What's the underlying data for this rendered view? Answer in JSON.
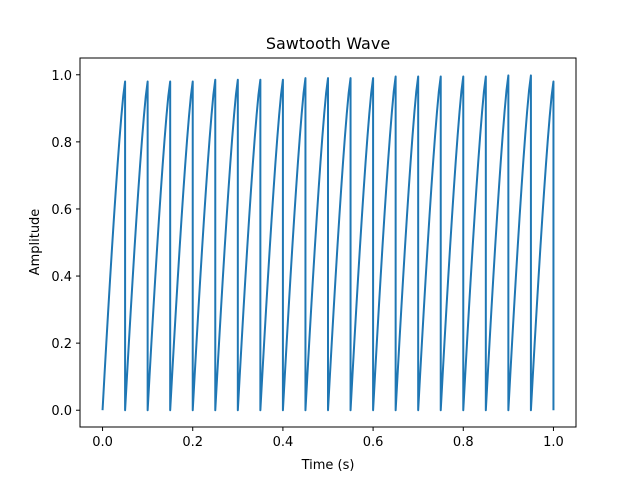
{
  "chart_data": {
    "type": "line",
    "title": "Sawtooth Wave",
    "xlabel": "Time (s)",
    "ylabel": "Amplitude",
    "xlim": [
      -0.05,
      1.05
    ],
    "ylim": [
      -0.05,
      1.05
    ],
    "x_ticks": [
      "0.0",
      "0.2",
      "0.4",
      "0.6",
      "0.8",
      "1.0"
    ],
    "y_ticks": [
      "0.0",
      "0.2",
      "0.4",
      "0.6",
      "0.8",
      "1.0"
    ],
    "grid": false,
    "legend": false,
    "line_color": "#1f77b4",
    "series": [
      {
        "period": 0.05,
        "x_range": [
          0.0,
          1.0
        ],
        "cycles": 20,
        "points": [
          {
            "x": 0.0,
            "y": 0.0
          },
          {
            "x": 0.05,
            "y": 0.98
          },
          {
            "x": 0.1,
            "y": 0.98
          },
          {
            "x": 0.15,
            "y": 0.98
          },
          {
            "x": 0.2,
            "y": 0.98
          },
          {
            "x": 0.25,
            "y": 0.985
          },
          {
            "x": 0.3,
            "y": 0.985
          },
          {
            "x": 0.35,
            "y": 0.985
          },
          {
            "x": 0.4,
            "y": 0.985
          },
          {
            "x": 0.45,
            "y": 0.99
          },
          {
            "x": 0.5,
            "y": 0.99
          },
          {
            "x": 0.55,
            "y": 0.99
          },
          {
            "x": 0.6,
            "y": 0.99
          },
          {
            "x": 0.65,
            "y": 0.995
          },
          {
            "x": 0.7,
            "y": 0.995
          },
          {
            "x": 0.75,
            "y": 0.995
          },
          {
            "x": 0.8,
            "y": 0.995
          },
          {
            "x": 0.85,
            "y": 0.995
          },
          {
            "x": 0.9,
            "y": 0.998
          },
          {
            "x": 0.95,
            "y": 0.998
          },
          {
            "x": 1.0,
            "y": 0.98
          },
          {
            "x": 1.0,
            "y": 0.0
          }
        ]
      }
    ]
  }
}
